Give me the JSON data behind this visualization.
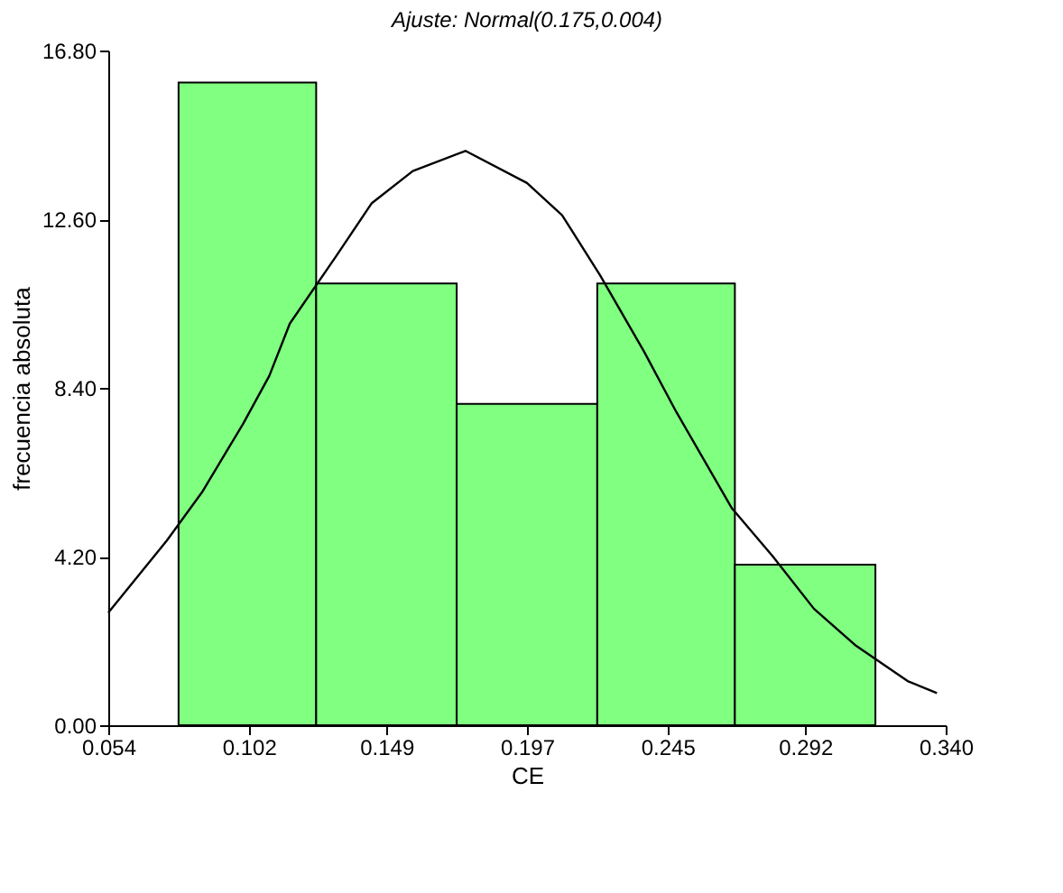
{
  "chart_data": {
    "type": "histogram",
    "title": "Ajuste: Normal(0.175,0.004)",
    "xlabel": "CE",
    "ylabel": "frecuencia absoluta",
    "bins": [
      0.078,
      0.125,
      0.173,
      0.221,
      0.268,
      0.316
    ],
    "values": [
      16,
      11,
      8,
      11,
      4
    ],
    "color": "#80ff80",
    "series": [
      {
        "type": "line",
        "color": "#000000",
        "x": [
          0.054,
          0.074,
          0.086,
          0.1,
          0.109,
          0.116,
          0.132,
          0.144,
          0.158,
          0.176,
          0.197,
          0.209,
          0.222,
          0.237,
          0.248,
          0.267,
          0.281,
          0.295,
          0.309,
          0.327,
          0.337
        ],
        "values": [
          2.8,
          4.6,
          5.8,
          7.5,
          8.7,
          10.0,
          11.7,
          13.0,
          13.8,
          14.3,
          13.5,
          12.7,
          11.2,
          9.3,
          7.8,
          5.4,
          4.2,
          2.9,
          2.0,
          1.1,
          0.8
        ]
      }
    ],
    "xlim": [
      0.054,
      0.34
    ],
    "xticks": [
      0.054,
      0.102,
      0.149,
      0.197,
      0.245,
      0.292,
      {
        "value": 0.34,
        "label": "0.340"
      }
    ],
    "ylim": [
      0,
      16.8
    ],
    "yticks": [
      {
        "value": 0,
        "label": "0.00"
      },
      {
        "value": 4.2,
        "label": "4.20"
      },
      {
        "value": 8.4,
        "label": "8.40"
      },
      {
        "value": 12.6,
        "label": "12.60"
      },
      {
        "value": 16.8,
        "label": "16.80"
      }
    ],
    "grid": false
  }
}
